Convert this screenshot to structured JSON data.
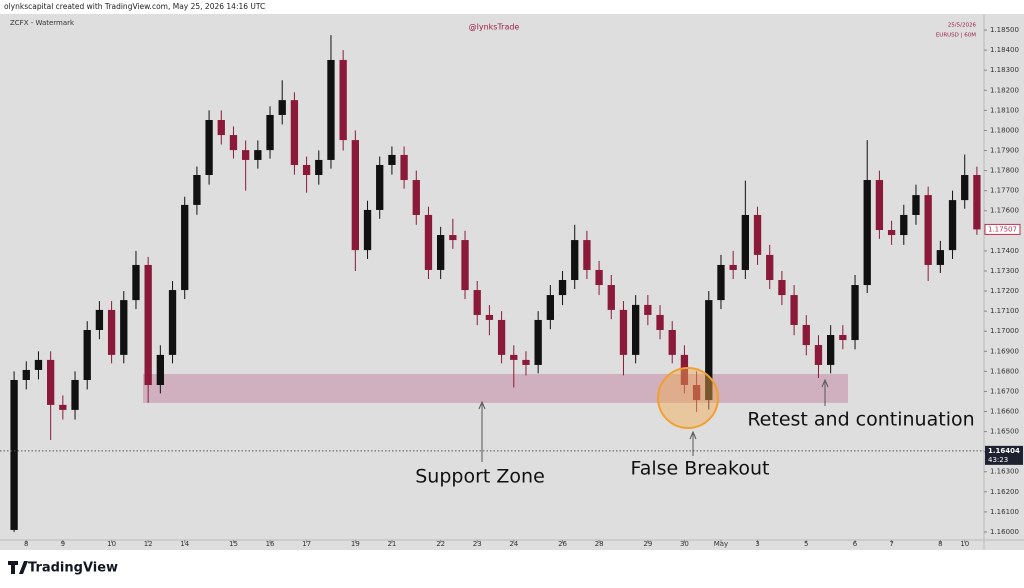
{
  "chart_data": {
    "type": "candlestick",
    "header": "olynkscapital created with TradingView.com, May 25, 2026 14:16 UTC",
    "watermark": "ZCFX - Watermark",
    "handle": "@lynksTrade",
    "date_label": "25/5/2026",
    "symbol": "EURUSD | 60M",
    "brand": "TradingView",
    "annotations": {
      "zone": "Support Zone",
      "breakout": "False Breakout",
      "retest": "Retest and continuation"
    },
    "support_zone": {
      "low": 1.16643,
      "high": 1.16787
    },
    "current_price": 1.16404,
    "countdown": "43:23",
    "last_price": 1.17507,
    "categories": [
      null,
      "8",
      null,
      null,
      "9",
      null,
      null,
      null,
      "10",
      null,
      null,
      "12",
      null,
      null,
      "14",
      null,
      null,
      null,
      "15",
      null,
      null,
      "16",
      null,
      null,
      "17",
      null,
      null,
      null,
      "19",
      null,
      null,
      "21",
      null,
      null,
      null,
      "22",
      null,
      null,
      "23",
      null,
      null,
      "24",
      null,
      null,
      null,
      "26",
      null,
      null,
      "28",
      null,
      null,
      null,
      "29",
      null,
      null,
      "30",
      null,
      null,
      "May",
      null,
      null,
      "3",
      null,
      null,
      null,
      "5",
      null,
      null,
      null,
      "6",
      null,
      null,
      "7",
      null,
      null,
      null,
      "8",
      null,
      "10",
      null
    ],
    "series": [
      {
        "up_color": "#111111",
        "down_color": "#8b1a3a",
        "open": [
          1.1601,
          1.16757,
          1.16807,
          1.16857,
          1.16633,
          1.16608,
          1.16757,
          1.17006,
          1.17106,
          1.16882,
          1.17155,
          1.1733,
          1.16732,
          1.16882,
          1.17205,
          1.17629,
          1.17778,
          1.18052,
          1.17977,
          1.17902,
          1.17853,
          1.17902,
          1.18077,
          1.18151,
          1.17828,
          1.17778,
          1.17853,
          1.18351,
          1.17952,
          1.17404,
          1.17604,
          1.17828,
          1.17878,
          1.17753,
          1.17579,
          1.17305,
          1.17479,
          1.17454,
          1.17205,
          1.17081,
          1.17056,
          1.16882,
          1.16857,
          1.16832,
          1.17056,
          1.1718,
          1.17255,
          1.17454,
          1.17305,
          1.1723,
          1.17106,
          1.16882,
          1.17131,
          1.17081,
          1.17006,
          1.16882,
          1.16732,
          1.16657,
          1.17155,
          1.1733,
          1.17305,
          1.17579,
          1.1738,
          1.17255,
          1.1718,
          1.17031,
          1.16931,
          1.16832,
          1.16981,
          1.16956,
          1.1723,
          1.17753,
          1.17504,
          1.17479,
          1.17579,
          1.17678,
          1.1733,
          1.17404,
          1.17653,
          1.17778
        ],
        "high": [
          1.168,
          1.1685,
          1.169,
          1.169,
          1.1668,
          1.168,
          1.1705,
          1.1715,
          1.1715,
          1.172,
          1.174,
          1.1737,
          1.1693,
          1.1725,
          1.1767,
          1.1782,
          1.181,
          1.181,
          1.1802,
          1.1795,
          1.1795,
          1.1812,
          1.1825,
          1.1819,
          1.1787,
          1.179,
          1.18475,
          1.184,
          1.18,
          1.1765,
          1.1787,
          1.1792,
          1.1792,
          1.178,
          1.1762,
          1.1752,
          1.1756,
          1.175,
          1.1725,
          1.1713,
          1.171,
          1.1693,
          1.169,
          1.171,
          1.1723,
          1.173,
          1.1753,
          1.175,
          1.1735,
          1.1728,
          1.1715,
          1.1718,
          1.1718,
          1.1713,
          1.1705,
          1.1693,
          1.168,
          1.172,
          1.1738,
          1.174,
          1.1775,
          1.1762,
          1.1743,
          1.173,
          1.1723,
          1.1708,
          1.1698,
          1.1703,
          1.1703,
          1.1728,
          1.17952,
          1.178,
          1.1755,
          1.1763,
          1.1773,
          1.1772,
          1.1745,
          1.177,
          1.1788,
          1.1782
        ],
        "low": [
          1.16,
          1.1671,
          1.1676,
          1.16458,
          1.1656,
          1.1656,
          1.1671,
          1.1696,
          1.1684,
          1.1684,
          1.1711,
          1.16643,
          1.1669,
          1.1684,
          1.1716,
          1.1758,
          1.1773,
          1.1793,
          1.1786,
          1.177,
          1.1781,
          1.1786,
          1.1803,
          1.1778,
          1.1769,
          1.1773,
          1.1781,
          1.179,
          1.173,
          1.1736,
          1.1756,
          1.1778,
          1.1771,
          1.1753,
          1.1726,
          1.1726,
          1.1741,
          1.1716,
          1.1703,
          1.1698,
          1.1684,
          1.1672,
          1.1678,
          1.1679,
          1.1701,
          1.1713,
          1.1721,
          1.1726,
          1.1718,
          1.1706,
          1.1678,
          1.1684,
          1.1703,
          1.1696,
          1.1684,
          1.1669,
          1.16598,
          1.1661,
          1.1711,
          1.1726,
          1.1726,
          1.1733,
          1.1721,
          1.1713,
          1.1698,
          1.1688,
          1.16767,
          1.1679,
          1.1691,
          1.1691,
          1.1719,
          1.1746,
          1.1743,
          1.1743,
          1.1753,
          1.1725,
          1.1729,
          1.1736,
          1.1761,
          1.1748
        ],
        "close": [
          1.16757,
          1.16807,
          1.16857,
          1.16633,
          1.16608,
          1.16757,
          1.17006,
          1.17106,
          1.16882,
          1.17155,
          1.1733,
          1.16732,
          1.16882,
          1.17205,
          1.17629,
          1.17778,
          1.18052,
          1.17977,
          1.17902,
          1.17853,
          1.17902,
          1.18077,
          1.18151,
          1.17828,
          1.17778,
          1.17853,
          1.18351,
          1.17952,
          1.17404,
          1.17604,
          1.17828,
          1.17878,
          1.17753,
          1.17579,
          1.17305,
          1.17479,
          1.17454,
          1.17205,
          1.17081,
          1.17056,
          1.16882,
          1.16857,
          1.16832,
          1.17056,
          1.1718,
          1.17255,
          1.17454,
          1.17305,
          1.1723,
          1.17106,
          1.16882,
          1.17131,
          1.17081,
          1.17006,
          1.16882,
          1.16732,
          1.16657,
          1.17155,
          1.1733,
          1.17305,
          1.17579,
          1.1738,
          1.17255,
          1.1718,
          1.17031,
          1.16931,
          1.16832,
          1.16981,
          1.16956,
          1.1723,
          1.17753,
          1.17504,
          1.17479,
          1.17579,
          1.17678,
          1.1733,
          1.17404,
          1.17653,
          1.17778,
          1.17507
        ]
      }
    ],
    "ylim": [
      1.1596,
      1.18575
    ],
    "yticks": [
      {
        "value": 1.16,
        "label": "1.16000"
      },
      {
        "value": 1.161,
        "label": "1.16100"
      },
      {
        "value": 1.162,
        "label": "1.16200"
      },
      {
        "value": 1.163,
        "label": "1.16300"
      },
      {
        "value": 1.164,
        "label": "1.16400"
      },
      {
        "value": 1.165,
        "label": "1.16500"
      },
      {
        "value": 1.166,
        "label": "1.16600"
      },
      {
        "value": 1.167,
        "label": "1.16700"
      },
      {
        "value": 1.168,
        "label": "1.16800"
      },
      {
        "value": 1.169,
        "label": "1.16900"
      },
      {
        "value": 1.17,
        "label": "1.17000"
      },
      {
        "value": 1.171,
        "label": "1.17100"
      },
      {
        "value": 1.172,
        "label": "1.17200"
      },
      {
        "value": 1.173,
        "label": "1.17300"
      },
      {
        "value": 1.174,
        "label": "1.17400"
      },
      {
        "value": 1.175,
        "label": "1.17500"
      },
      {
        "value": 1.176,
        "label": "1.17600"
      },
      {
        "value": 1.177,
        "label": "1.17700"
      },
      {
        "value": 1.178,
        "label": "1.17800"
      },
      {
        "value": 1.179,
        "label": "1.17900"
      },
      {
        "value": 1.18,
        "label": "1.18000"
      },
      {
        "value": 1.181,
        "label": "1.18100"
      },
      {
        "value": 1.182,
        "label": "1.18200"
      },
      {
        "value": 1.183,
        "label": "1.18300"
      },
      {
        "value": 1.184,
        "label": "1.18400"
      },
      {
        "value": 1.185,
        "label": "1.18500"
      }
    ],
    "grid": false
  }
}
